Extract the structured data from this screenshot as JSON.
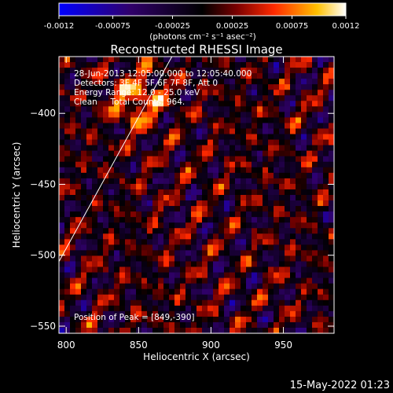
{
  "chart_data": {
    "type": "heatmap",
    "title": "Reconstructed RHESSI Image",
    "xlabel": "Heliocentric X (arcsec)",
    "ylabel": "Heliocentric Y (arcsec)",
    "xlim": [
      795,
      985
    ],
    "ylim": [
      -555,
      -360
    ],
    "x_ticks": [
      800,
      850,
      900,
      950
    ],
    "y_ticks": [
      -400,
      -450,
      -500,
      -550
    ],
    "colorbar": {
      "label": "(photons cm⁻² s⁻¹ asec⁻²)",
      "range": [
        -0.0012,
        0.0012
      ],
      "ticks": [
        "-0.0012",
        "-0.00075",
        "-0.00025",
        "0.00025",
        "0.00075",
        "0.0012"
      ],
      "colormap": [
        "#0000ff",
        "#30006a",
        "#000000",
        "#7a0000",
        "#ff2a00",
        "#ffc000",
        "#ffffff"
      ]
    },
    "annotations": [
      "28-Jun-2013 12:05:00.000 to 12:05:40.000",
      "Detectors: 3F 4F 5F 6F 7F 8F, Att 0",
      "Energy Range: 12.0 - 25.0 keV",
      "Clean     Total Counts: 964."
    ],
    "peak_label": "Position of Peak = [849,-390]",
    "limb_line": [
      [
        792,
        -510
      ],
      [
        873,
        -360
      ]
    ],
    "grid_shape": [
      50,
      50
    ]
  },
  "footer": {
    "date": "15-May-2022 01:23"
  }
}
